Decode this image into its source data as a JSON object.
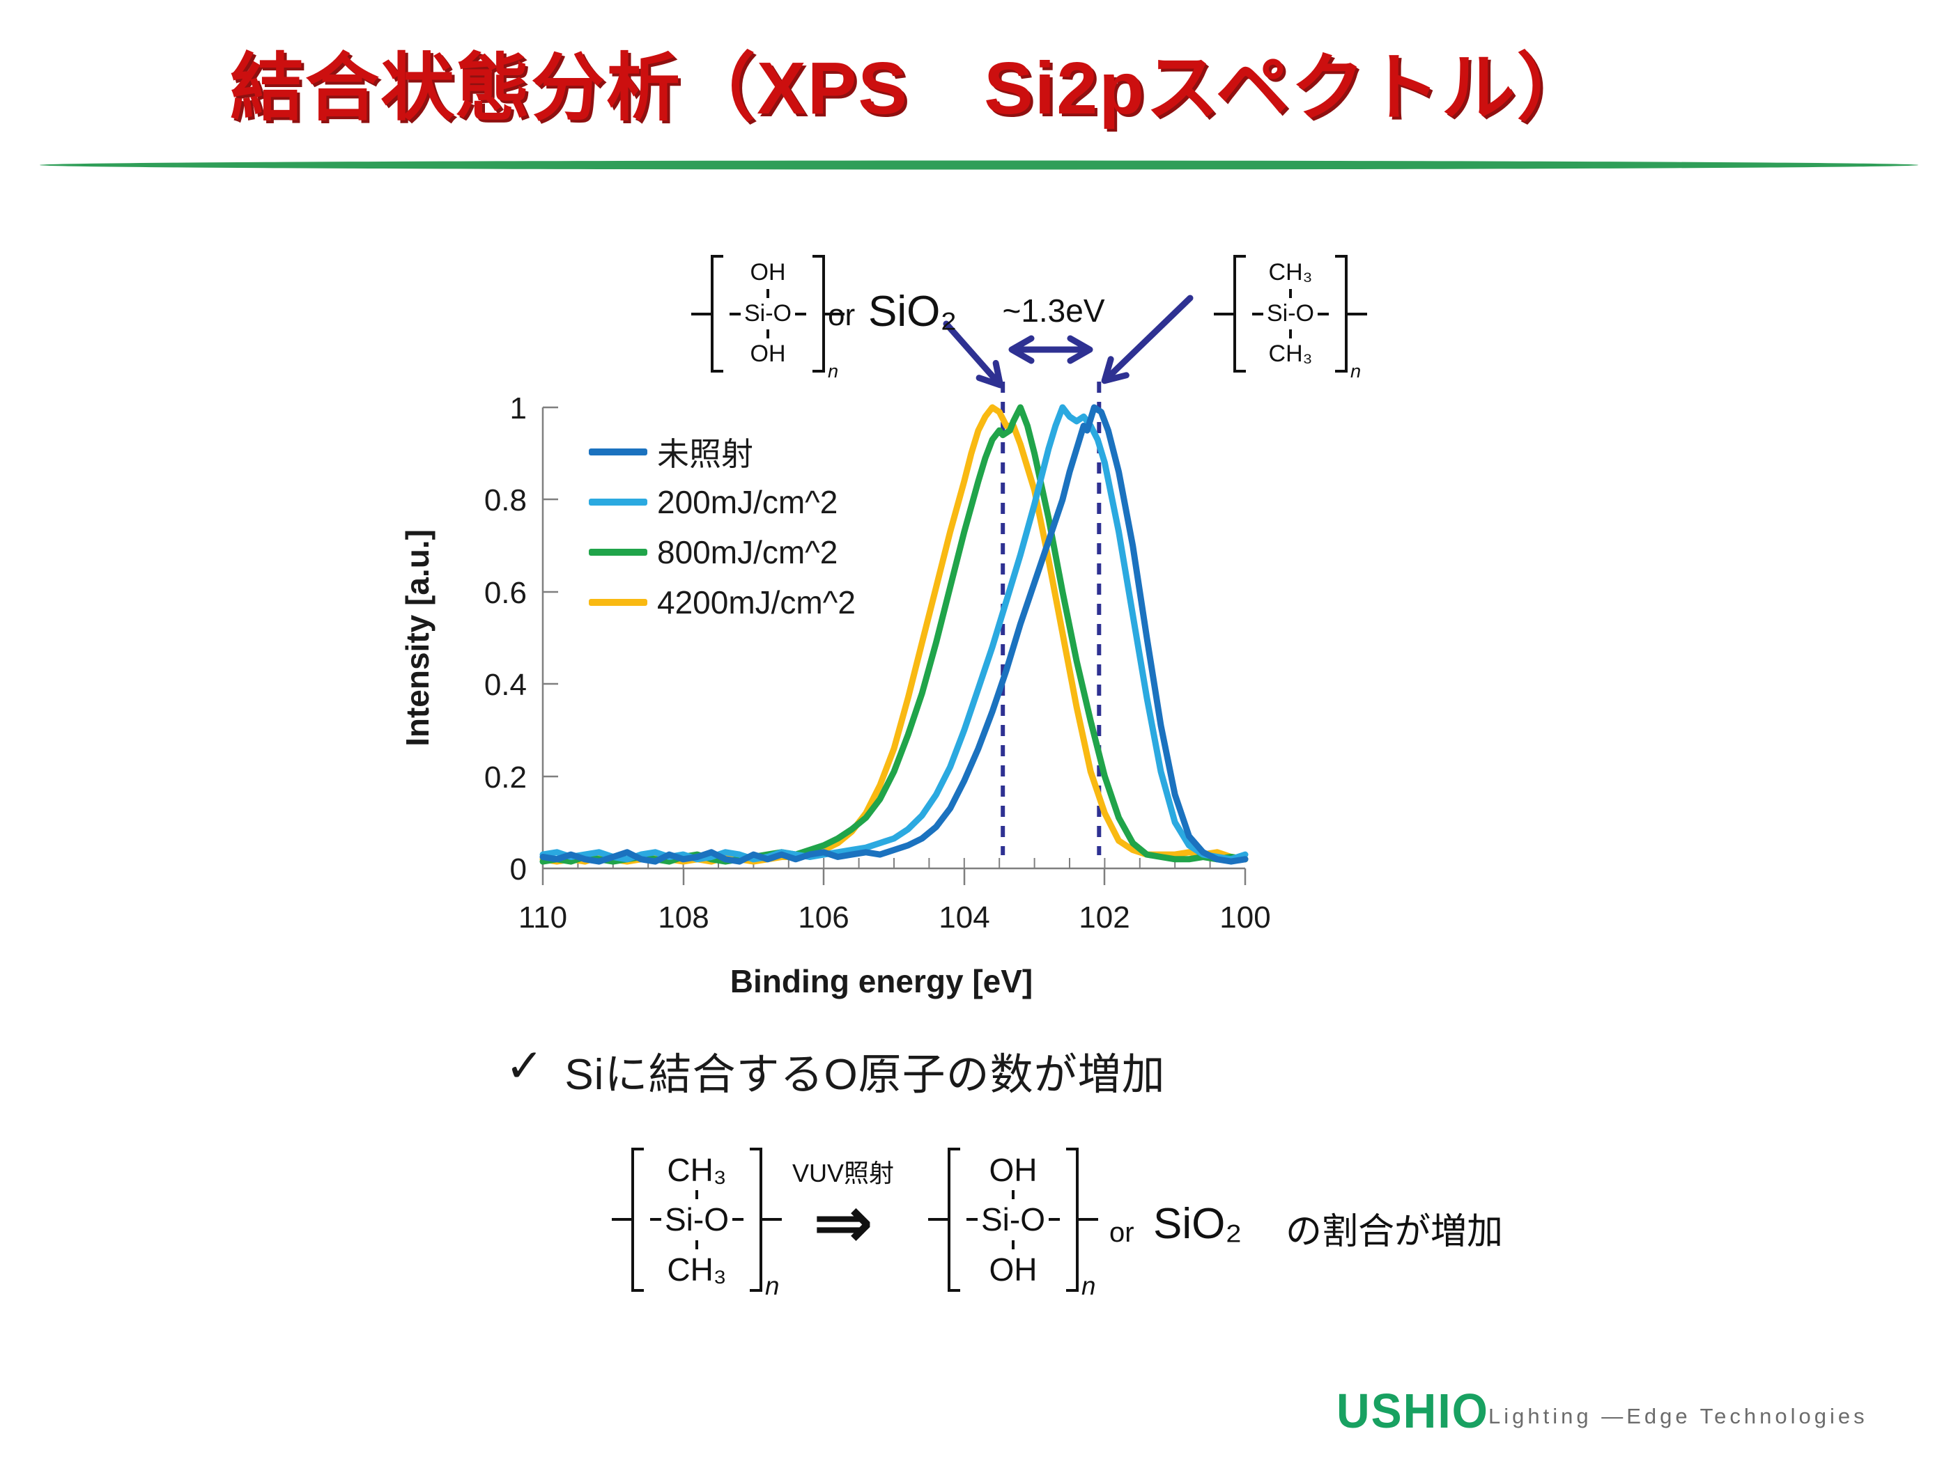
{
  "slide": {
    "title": "結合状態分析（XPS　Si2pスペクトル）",
    "title_color": "#cc0f0f",
    "divider_color": "#2f9e58"
  },
  "annotations": {
    "left_structure": {
      "top": "OH",
      "mid": "Si-O",
      "bottom": "OH",
      "sub": "n"
    },
    "or_label": "or",
    "sio2_label": "SiO₂",
    "delta_label": "~1.3eV",
    "right_structure": {
      "top": "CH₃",
      "mid": "Si-O",
      "bottom": "CH₃",
      "sub": "n"
    },
    "dashed_lines_ev": [
      103.45,
      102.08
    ],
    "annotation_color": "#2e3192"
  },
  "chart_data": {
    "type": "line",
    "xlabel": "Binding energy [eV]",
    "ylabel": "Intensity [a.u.]",
    "xlim": [
      110,
      100
    ],
    "ylim": [
      0,
      1
    ],
    "x_axis_reversed": true,
    "x_ticks": [
      110,
      108,
      106,
      104,
      102,
      100
    ],
    "x_tick_labels": [
      "110",
      "108",
      "106",
      "104",
      "102",
      "100"
    ],
    "x_minor_tick_step": 0.5,
    "y_ticks": [
      1,
      0.8,
      0.6,
      0.4,
      0.2,
      0
    ],
    "y_tick_labels": [
      "1",
      "0.8",
      "0.6",
      "0.4",
      "0.2",
      "0"
    ],
    "grid": false,
    "legend_position": "inside-upper-left",
    "series": [
      {
        "name": "未照射",
        "color": "#1b72bf",
        "peak_ev": 102.1,
        "points": [
          [
            110,
            0.025
          ],
          [
            109.8,
            0.02
          ],
          [
            109.6,
            0.03
          ],
          [
            109.4,
            0.02
          ],
          [
            109.2,
            0.015
          ],
          [
            109,
            0.025
          ],
          [
            108.8,
            0.035
          ],
          [
            108.6,
            0.02
          ],
          [
            108.4,
            0.015
          ],
          [
            108.2,
            0.03
          ],
          [
            108,
            0.02
          ],
          [
            107.8,
            0.025
          ],
          [
            107.6,
            0.035
          ],
          [
            107.4,
            0.02
          ],
          [
            107.2,
            0.015
          ],
          [
            107,
            0.03
          ],
          [
            106.8,
            0.02
          ],
          [
            106.6,
            0.03
          ],
          [
            106.4,
            0.02
          ],
          [
            106.2,
            0.03
          ],
          [
            106,
            0.035
          ],
          [
            105.8,
            0.025
          ],
          [
            105.6,
            0.03
          ],
          [
            105.4,
            0.035
          ],
          [
            105.2,
            0.03
          ],
          [
            105,
            0.04
          ],
          [
            104.8,
            0.05
          ],
          [
            104.6,
            0.065
          ],
          [
            104.4,
            0.09
          ],
          [
            104.2,
            0.13
          ],
          [
            104,
            0.19
          ],
          [
            103.8,
            0.26
          ],
          [
            103.6,
            0.34
          ],
          [
            103.4,
            0.43
          ],
          [
            103.2,
            0.53
          ],
          [
            103,
            0.62
          ],
          [
            102.8,
            0.71
          ],
          [
            102.6,
            0.8
          ],
          [
            102.5,
            0.86
          ],
          [
            102.4,
            0.91
          ],
          [
            102.3,
            0.96
          ],
          [
            102.25,
            0.95
          ],
          [
            102.15,
            1.0
          ],
          [
            102.05,
            0.99
          ],
          [
            101.95,
            0.95
          ],
          [
            101.8,
            0.86
          ],
          [
            101.6,
            0.7
          ],
          [
            101.4,
            0.5
          ],
          [
            101.2,
            0.31
          ],
          [
            101,
            0.16
          ],
          [
            100.8,
            0.07
          ],
          [
            100.6,
            0.035
          ],
          [
            100.4,
            0.02
          ],
          [
            100.2,
            0.015
          ],
          [
            100,
            0.02
          ]
        ]
      },
      {
        "name": "200mJ/cm^2",
        "color": "#2ba9e0",
        "peak_ev": 102.6,
        "points": [
          [
            110,
            0.03
          ],
          [
            109.8,
            0.035
          ],
          [
            109.6,
            0.025
          ],
          [
            109.4,
            0.03
          ],
          [
            109.2,
            0.035
          ],
          [
            109,
            0.025
          ],
          [
            108.8,
            0.02
          ],
          [
            108.6,
            0.03
          ],
          [
            108.4,
            0.035
          ],
          [
            108.2,
            0.025
          ],
          [
            108,
            0.03
          ],
          [
            107.8,
            0.02
          ],
          [
            107.6,
            0.025
          ],
          [
            107.4,
            0.035
          ],
          [
            107.2,
            0.03
          ],
          [
            107,
            0.02
          ],
          [
            106.8,
            0.025
          ],
          [
            106.6,
            0.035
          ],
          [
            106.4,
            0.03
          ],
          [
            106.2,
            0.025
          ],
          [
            106,
            0.03
          ],
          [
            105.8,
            0.035
          ],
          [
            105.6,
            0.04
          ],
          [
            105.4,
            0.045
          ],
          [
            105.2,
            0.055
          ],
          [
            105,
            0.065
          ],
          [
            104.8,
            0.085
          ],
          [
            104.6,
            0.115
          ],
          [
            104.4,
            0.16
          ],
          [
            104.2,
            0.22
          ],
          [
            104,
            0.3
          ],
          [
            103.8,
            0.39
          ],
          [
            103.6,
            0.48
          ],
          [
            103.4,
            0.58
          ],
          [
            103.2,
            0.68
          ],
          [
            103,
            0.79
          ],
          [
            102.9,
            0.85
          ],
          [
            102.8,
            0.91
          ],
          [
            102.7,
            0.96
          ],
          [
            102.6,
            1.0
          ],
          [
            102.5,
            0.98
          ],
          [
            102.4,
            0.97
          ],
          [
            102.3,
            0.98
          ],
          [
            102.2,
            0.96
          ],
          [
            102.1,
            0.93
          ],
          [
            102,
            0.88
          ],
          [
            101.8,
            0.73
          ],
          [
            101.6,
            0.55
          ],
          [
            101.4,
            0.37
          ],
          [
            101.2,
            0.21
          ],
          [
            101,
            0.1
          ],
          [
            100.8,
            0.05
          ],
          [
            100.6,
            0.03
          ],
          [
            100.4,
            0.025
          ],
          [
            100.2,
            0.02
          ],
          [
            100,
            0.03
          ]
        ]
      },
      {
        "name": "800mJ/cm^2",
        "color": "#20a44a",
        "peak_ev": 103.2,
        "points": [
          [
            110,
            0.015
          ],
          [
            109.8,
            0.02
          ],
          [
            109.6,
            0.015
          ],
          [
            109.4,
            0.025
          ],
          [
            109.2,
            0.02
          ],
          [
            109,
            0.015
          ],
          [
            108.8,
            0.02
          ],
          [
            108.6,
            0.025
          ],
          [
            108.4,
            0.02
          ],
          [
            108.2,
            0.015
          ],
          [
            108,
            0.025
          ],
          [
            107.8,
            0.03
          ],
          [
            107.6,
            0.02
          ],
          [
            107.4,
            0.015
          ],
          [
            107.2,
            0.02
          ],
          [
            107,
            0.025
          ],
          [
            106.8,
            0.03
          ],
          [
            106.6,
            0.035
          ],
          [
            106.4,
            0.03
          ],
          [
            106.2,
            0.04
          ],
          [
            106,
            0.05
          ],
          [
            105.8,
            0.065
          ],
          [
            105.6,
            0.085
          ],
          [
            105.4,
            0.11
          ],
          [
            105.2,
            0.15
          ],
          [
            105,
            0.21
          ],
          [
            104.8,
            0.29
          ],
          [
            104.6,
            0.38
          ],
          [
            104.4,
            0.49
          ],
          [
            104.2,
            0.61
          ],
          [
            104,
            0.73
          ],
          [
            103.8,
            0.84
          ],
          [
            103.7,
            0.89
          ],
          [
            103.6,
            0.93
          ],
          [
            103.5,
            0.95
          ],
          [
            103.45,
            0.94
          ],
          [
            103.35,
            0.95
          ],
          [
            103.3,
            0.97
          ],
          [
            103.2,
            1.0
          ],
          [
            103.1,
            0.96
          ],
          [
            103,
            0.9
          ],
          [
            102.8,
            0.76
          ],
          [
            102.6,
            0.6
          ],
          [
            102.4,
            0.45
          ],
          [
            102.2,
            0.32
          ],
          [
            102,
            0.2
          ],
          [
            101.8,
            0.11
          ],
          [
            101.6,
            0.055
          ],
          [
            101.4,
            0.03
          ],
          [
            101.2,
            0.025
          ],
          [
            101,
            0.02
          ],
          [
            100.8,
            0.02
          ],
          [
            100.6,
            0.025
          ],
          [
            100.4,
            0.02
          ],
          [
            100.2,
            0.025
          ],
          [
            100,
            0.02
          ]
        ]
      },
      {
        "name": "4200mJ/cm^2",
        "color": "#f9b912",
        "peak_ev": 103.6,
        "points": [
          [
            110,
            0.02
          ],
          [
            109.8,
            0.015
          ],
          [
            109.6,
            0.02
          ],
          [
            109.4,
            0.015
          ],
          [
            109.2,
            0.025
          ],
          [
            109,
            0.02
          ],
          [
            108.8,
            0.015
          ],
          [
            108.6,
            0.02
          ],
          [
            108.4,
            0.025
          ],
          [
            108.2,
            0.02
          ],
          [
            108,
            0.015
          ],
          [
            107.8,
            0.02
          ],
          [
            107.6,
            0.015
          ],
          [
            107.4,
            0.025
          ],
          [
            107.2,
            0.02
          ],
          [
            107,
            0.015
          ],
          [
            106.8,
            0.02
          ],
          [
            106.6,
            0.025
          ],
          [
            106.4,
            0.025
          ],
          [
            106.2,
            0.03
          ],
          [
            106,
            0.04
          ],
          [
            105.8,
            0.055
          ],
          [
            105.6,
            0.08
          ],
          [
            105.4,
            0.12
          ],
          [
            105.2,
            0.18
          ],
          [
            105,
            0.26
          ],
          [
            104.8,
            0.37
          ],
          [
            104.6,
            0.49
          ],
          [
            104.4,
            0.61
          ],
          [
            104.2,
            0.73
          ],
          [
            104,
            0.84
          ],
          [
            103.9,
            0.9
          ],
          [
            103.8,
            0.95
          ],
          [
            103.7,
            0.98
          ],
          [
            103.6,
            1.0
          ],
          [
            103.5,
            0.99
          ],
          [
            103.4,
            0.96
          ],
          [
            103.3,
            0.96
          ],
          [
            103.2,
            0.92
          ],
          [
            103,
            0.82
          ],
          [
            102.8,
            0.67
          ],
          [
            102.6,
            0.51
          ],
          [
            102.4,
            0.35
          ],
          [
            102.2,
            0.21
          ],
          [
            102,
            0.12
          ],
          [
            101.8,
            0.06
          ],
          [
            101.6,
            0.04
          ],
          [
            101.4,
            0.03
          ],
          [
            101.2,
            0.03
          ],
          [
            101,
            0.03
          ],
          [
            100.8,
            0.035
          ],
          [
            100.6,
            0.03
          ],
          [
            100.4,
            0.035
          ],
          [
            100.2,
            0.025
          ],
          [
            100,
            0.02
          ]
        ]
      }
    ]
  },
  "findings": {
    "check": "✓",
    "text": "Siに結合するO原子の数が増加"
  },
  "reaction": {
    "before": {
      "top": "CH₃",
      "mid": "Si-O",
      "bottom": "CH₃",
      "sub": "n"
    },
    "condition": "VUV照射",
    "arrow": "⇒",
    "after": {
      "top": "OH",
      "mid": "Si-O",
      "bottom": "OH",
      "sub": "n"
    },
    "or_label": "or",
    "sio2_label": "SiO₂",
    "suffix": "の割合が増加"
  },
  "footer": {
    "logo_text": "USHIO",
    "logo_color": "#18a161",
    "tagline": "Lighting —Edge Technologies",
    "tagline_color": "#6b6b6b"
  }
}
